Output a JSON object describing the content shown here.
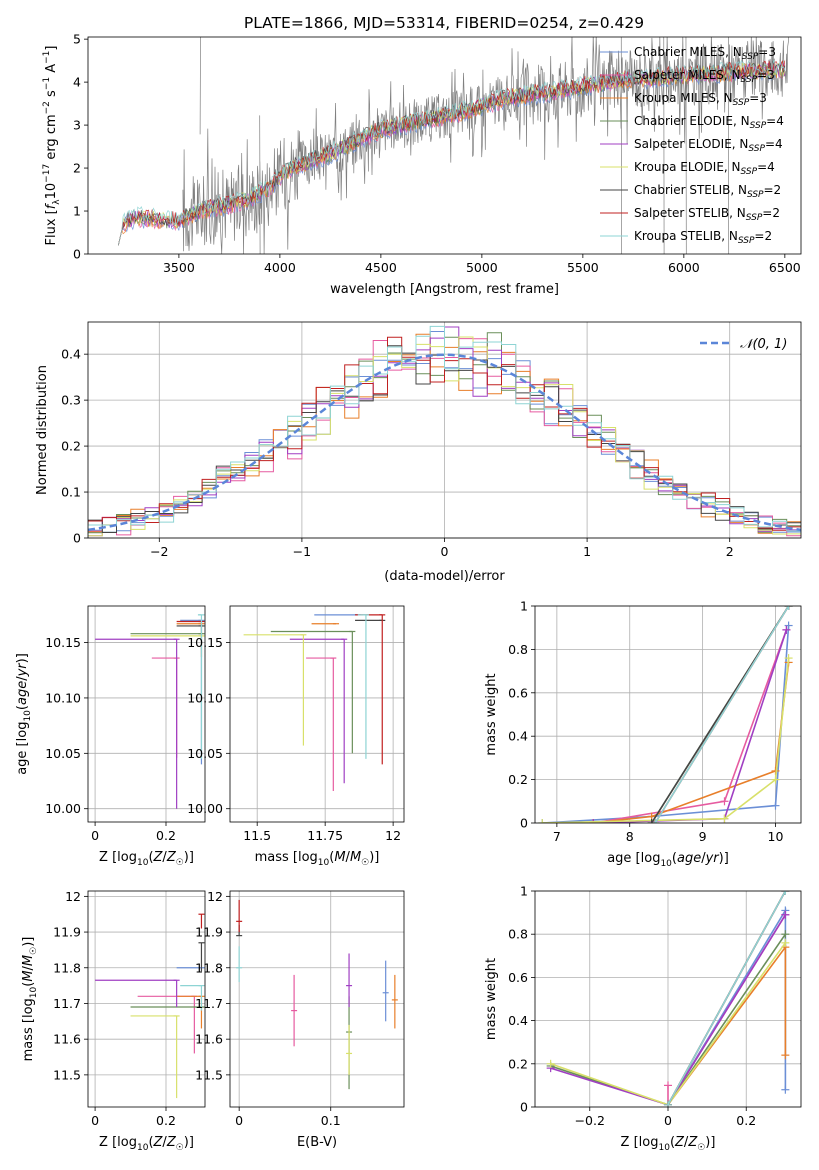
{
  "page_title": "PLATE=1866, MJD=53314, FIBERID=0254, z=0.429",
  "colors": {
    "chabrier_miles": "#6b8fd6",
    "salpeter_miles": "#e65ba0",
    "kroupa_miles": "#e87f2a",
    "chabrier_elodie": "#6a8f5a",
    "salpeter_elodie": "#a03fc3",
    "kroupa_elodie": "#d8e06a",
    "chabrier_stelib": "#454545",
    "salpeter_stelib": "#c02020",
    "kroupa_stelib": "#8ed4d4",
    "data": "#808080",
    "normal": "#5b86d8"
  },
  "legend_spectrum": [
    {
      "label": "Chabrier MILES, N",
      "sub": "SSP",
      "suffix": "=3",
      "color": "#6b8fd6"
    },
    {
      "label": "Salpeter MILES, N",
      "sub": "SSP",
      "suffix": "=3",
      "color": "#e65ba0"
    },
    {
      "label": "Kroupa MILES, N",
      "sub": "SSP",
      "suffix": "=3",
      "color": "#e87f2a"
    },
    {
      "label": "Chabrier ELODIE, N",
      "sub": "SSP",
      "suffix": "=4",
      "color": "#6a8f5a"
    },
    {
      "label": "Salpeter ELODIE, N",
      "sub": "SSP",
      "suffix": "=4",
      "color": "#a03fc3"
    },
    {
      "label": "Kroupa ELODIE, N",
      "sub": "SSP",
      "suffix": "=4",
      "color": "#d8e06a"
    },
    {
      "label": "Chabrier STELIB, N",
      "sub": "SSP",
      "suffix": "=2",
      "color": "#454545"
    },
    {
      "label": "Salpeter STELIB, N",
      "sub": "SSP",
      "suffix": "=2",
      "color": "#c02020"
    },
    {
      "label": "Kroupa STELIB, N",
      "sub": "SSP",
      "suffix": "=2",
      "color": "#8ed4d4"
    }
  ],
  "legend_hist": {
    "label": "𝒩(0, 1)"
  },
  "chart_data": [
    {
      "id": "spectrum",
      "type": "line",
      "title": "PLATE=1866, MJD=53314, FIBERID=0254, z=0.429",
      "xlabel": "wavelength [Angstrom, rest frame]",
      "ylabel": "Flux [f_λ 10^-17 erg cm^-2 s^-1 A^-1]",
      "xlim": [
        3050,
        6580
      ],
      "ylim": [
        0,
        5.05
      ],
      "xticks": [
        3500,
        4000,
        4500,
        5000,
        5500,
        6000,
        6500
      ],
      "yticks": [
        0,
        1,
        2,
        3,
        4,
        5
      ],
      "grid": false,
      "legend_position": "upper-right",
      "model_continuum": [
        [
          3200,
          0.55
        ],
        [
          3250,
          0.8
        ],
        [
          3300,
          0.85
        ],
        [
          3400,
          0.8
        ],
        [
          3500,
          0.75
        ],
        [
          3550,
          0.9
        ],
        [
          3650,
          1.05
        ],
        [
          3750,
          1.15
        ],
        [
          3850,
          1.3
        ],
        [
          3950,
          1.55
        ],
        [
          4000,
          1.8
        ],
        [
          4050,
          2.0
        ],
        [
          4150,
          2.15
        ],
        [
          4300,
          2.45
        ],
        [
          4500,
          2.9
        ],
        [
          4700,
          3.1
        ],
        [
          4900,
          3.3
        ],
        [
          5100,
          3.6
        ],
        [
          5300,
          3.75
        ],
        [
          5500,
          3.9
        ],
        [
          5700,
          4.05
        ],
        [
          6000,
          4.15
        ],
        [
          6300,
          4.25
        ],
        [
          6500,
          4.3
        ]
      ],
      "data_range": [
        3520,
        6520
      ]
    },
    {
      "id": "residuals",
      "type": "histogram",
      "xlabel": "(data-model)/error",
      "ylabel": "Normed distribution",
      "xlim": [
        -2.5,
        2.5
      ],
      "ylim": [
        0,
        0.47
      ],
      "xticks": [
        -2,
        -1,
        0,
        1,
        2
      ],
      "yticks": [
        0.0,
        0.1,
        0.2,
        0.3,
        0.4
      ],
      "grid": true,
      "legend_position": "upper-right",
      "bin_width": 0.1
    },
    {
      "id": "age_vs_Z",
      "type": "errorbar",
      "xlabel": "Z [log10(Z/Z☉)]",
      "ylabel": "age [log10(age/yr)]",
      "xlim": [
        -0.02,
        0.31
      ],
      "ylim": [
        9.988,
        10.183
      ],
      "xticks": [
        0.0,
        0.2
      ],
      "yticks": [
        10.0,
        10.05,
        10.1,
        10.15
      ],
      "grid": true,
      "points": [
        {
          "x": 0.3,
          "y": 10.17,
          "xerr": [
            0.06,
            0.0
          ],
          "yerr": [
            0.13,
            0.0
          ],
          "c": "#6b8fd6"
        },
        {
          "x": 0.23,
          "y": 10.136,
          "xerr": [
            0.07,
            0.0
          ],
          "yerr": [
            0.09,
            0.0
          ],
          "c": "#e65ba0"
        },
        {
          "x": 0.3,
          "y": 10.167,
          "xerr": [
            0.07,
            0.0
          ],
          "yerr": [
            0.03,
            0.0
          ],
          "c": "#e87f2a"
        },
        {
          "x": 0.3,
          "y": 10.158,
          "xerr": [
            0.2,
            0.0
          ],
          "yerr": [
            0.0,
            0.0
          ],
          "c": "#6a8f5a"
        },
        {
          "x": 0.23,
          "y": 10.153,
          "xerr": [
            0.23,
            0.0
          ],
          "yerr": [
            0.153,
            0.0
          ],
          "c": "#a03fc3"
        },
        {
          "x": 0.3,
          "y": 10.156,
          "xerr": [
            0.2,
            0.0
          ],
          "yerr": [
            0.0,
            0.0
          ],
          "c": "#d8e06a"
        },
        {
          "x": 0.3,
          "y": 10.165,
          "xerr": [
            0.07,
            0.0
          ],
          "yerr": [
            0.0,
            0.0
          ],
          "c": "#454545"
        },
        {
          "x": 0.3,
          "y": 10.169,
          "xerr": [
            0.07,
            0.0
          ],
          "yerr": [
            0.0,
            0.0
          ],
          "c": "#c02020"
        },
        {
          "x": 0.3,
          "y": 10.175,
          "xerr": [
            0.01,
            0.0
          ],
          "yerr": [
            0.13,
            0.0
          ],
          "c": "#8ed4d4"
        }
      ]
    },
    {
      "id": "age_vs_mass",
      "type": "errorbar",
      "xlabel": "mass [log10(M/M☉)]",
      "ylabel": "",
      "xlim": [
        11.4,
        12.04
      ],
      "ylim": [
        9.988,
        10.183
      ],
      "xticks": [
        11.5,
        11.75,
        12.0
      ],
      "yticks": [
        10.0,
        10.05,
        10.1,
        10.15
      ],
      "grid": true,
      "points": [
        {
          "x": 11.87,
          "y": 10.175,
          "xerr": [
            0.16,
            0.0
          ],
          "yerr": [
            0.0,
            0.0
          ],
          "c": "#6b8fd6"
        },
        {
          "x": 11.78,
          "y": 10.136,
          "xerr": [
            0.1,
            0.0
          ],
          "yerr": [
            0.12,
            0.0
          ],
          "c": "#e65ba0"
        },
        {
          "x": 11.79,
          "y": 10.167,
          "xerr": [
            0.09,
            0.0
          ],
          "yerr": [
            0.0,
            0.0
          ],
          "c": "#e87f2a"
        },
        {
          "x": 11.85,
          "y": 10.16,
          "xerr": [
            0.3,
            0.0
          ],
          "yerr": [
            0.11,
            0.0
          ],
          "c": "#6a8f5a"
        },
        {
          "x": 11.82,
          "y": 10.153,
          "xerr": [
            0.2,
            0.0
          ],
          "yerr": [
            0.13,
            0.0
          ],
          "c": "#a03fc3"
        },
        {
          "x": 11.67,
          "y": 10.157,
          "xerr": [
            0.22,
            0.0
          ],
          "yerr": [
            0.1,
            0.0
          ],
          "c": "#d8e06a"
        },
        {
          "x": 11.96,
          "y": 10.17,
          "xerr": [
            0.1,
            0.0
          ],
          "yerr": [
            0.0,
            0.0
          ],
          "c": "#454545"
        },
        {
          "x": 11.96,
          "y": 10.175,
          "xerr": [
            0.1,
            0.0
          ],
          "yerr": [
            0.135,
            0.0
          ],
          "c": "#c02020"
        },
        {
          "x": 11.9,
          "y": 10.175,
          "xerr": [
            0.03,
            0.0
          ],
          "yerr": [
            0.13,
            0.0
          ],
          "c": "#8ed4d4"
        }
      ]
    },
    {
      "id": "mass_weight_vs_age",
      "type": "line",
      "xlabel": "age [log10(age/yr)]",
      "ylabel": "mass weight",
      "xlim": [
        6.7,
        10.35
      ],
      "ylim": [
        0.0,
        1.0
      ],
      "xticks": [
        7,
        8,
        9,
        10
      ],
      "yticks": [
        0.0,
        0.2,
        0.4,
        0.6,
        0.8,
        1.0
      ],
      "grid": true,
      "series": [
        {
          "c": "#6b8fd6",
          "x": [
            6.8,
            8.3,
            10.0,
            10.18
          ],
          "y": [
            0.0,
            0.03,
            0.08,
            0.91
          ]
        },
        {
          "c": "#e65ba0",
          "x": [
            7.5,
            9.3,
            10.15
          ],
          "y": [
            0.0,
            0.1,
            0.89
          ]
        },
        {
          "c": "#e87f2a",
          "x": [
            7.5,
            8.3,
            10.0,
            10.18
          ],
          "y": [
            0.0,
            0.03,
            0.24,
            0.74
          ]
        },
        {
          "c": "#6a8f5a",
          "x": [
            8.3,
            10.18
          ],
          "y": [
            0.0,
            1.0
          ]
        },
        {
          "c": "#a03fc3",
          "x": [
            7.5,
            9.3,
            10.15
          ],
          "y": [
            0.0,
            0.02,
            0.89
          ]
        },
        {
          "c": "#d8e06a",
          "x": [
            6.8,
            9.3,
            10.0,
            10.18
          ],
          "y": [
            0.0,
            0.02,
            0.2,
            0.76
          ]
        },
        {
          "c": "#454545",
          "x": [
            8.3,
            10.18
          ],
          "y": [
            0.0,
            1.0
          ]
        },
        {
          "c": "#c02020",
          "x": [
            8.35,
            10.18
          ],
          "y": [
            0.0,
            1.0
          ]
        },
        {
          "c": "#8ed4d4",
          "x": [
            8.35,
            10.18
          ],
          "y": [
            0.0,
            1.0
          ]
        }
      ]
    },
    {
      "id": "mass_vs_Z",
      "type": "errorbar",
      "xlabel": "Z [log10(Z/Z☉)]",
      "ylabel": "mass [log10(M/M☉)]",
      "xlim": [
        -0.02,
        0.31
      ],
      "ylim": [
        11.41,
        12.015
      ],
      "xticks": [
        0.0,
        0.2
      ],
      "yticks": [
        11.5,
        11.6,
        11.7,
        11.8,
        11.9,
        12.0
      ],
      "grid": true,
      "points": [
        {
          "x": 0.3,
          "y": 11.8,
          "xerr": [
            0.07,
            0.0
          ],
          "yerr": [
            0.0,
            0.0
          ],
          "c": "#6b8fd6"
        },
        {
          "x": 0.28,
          "y": 11.72,
          "xerr": [
            0.16,
            0.0
          ],
          "yerr": [
            0.16,
            0.0
          ],
          "c": "#e65ba0"
        },
        {
          "x": 0.3,
          "y": 11.72,
          "xerr": [
            0.07,
            0.0
          ],
          "yerr": [
            0.09,
            0.0
          ],
          "c": "#e87f2a"
        },
        {
          "x": 0.3,
          "y": 11.69,
          "xerr": [
            0.2,
            0.0
          ],
          "yerr": [
            0.0,
            0.0
          ],
          "c": "#6a8f5a"
        },
        {
          "x": 0.23,
          "y": 11.765,
          "xerr": [
            0.23,
            0.0
          ],
          "yerr": [
            0.075,
            0.0
          ],
          "c": "#a03fc3"
        },
        {
          "x": 0.23,
          "y": 11.665,
          "xerr": [
            0.13,
            0.0
          ],
          "yerr": [
            0.23,
            0.0
          ],
          "c": "#d8e06a"
        },
        {
          "x": 0.3,
          "y": 11.87,
          "xerr": [
            0.0,
            0.0
          ],
          "yerr": [
            0.08,
            0.0
          ],
          "c": "#454545"
        },
        {
          "x": 0.3,
          "y": 11.95,
          "xerr": [
            0.0,
            0.0
          ],
          "yerr": [
            0.04,
            0.0
          ],
          "c": "#c02020"
        },
        {
          "x": 0.3,
          "y": 11.75,
          "xerr": [
            0.06,
            0.0
          ],
          "yerr": [
            0.07,
            0.0
          ],
          "c": "#8ed4d4"
        }
      ]
    },
    {
      "id": "mass_vs_ebv",
      "type": "errorbar",
      "xlabel": "E(B-V)",
      "ylabel": "",
      "xlim": [
        -0.01,
        0.18
      ],
      "ylim": [
        11.41,
        12.015
      ],
      "xticks": [
        0.0,
        0.1
      ],
      "yticks": [
        11.5,
        11.6,
        11.7,
        11.8,
        11.9,
        12.0
      ],
      "grid": true,
      "points": [
        {
          "x": 0.16,
          "y": 11.73,
          "xerr": [
            0.0,
            0.0
          ],
          "yerr": [
            0.08,
            0.09
          ],
          "c": "#6b8fd6"
        },
        {
          "x": 0.06,
          "y": 11.68,
          "xerr": [
            0.0,
            0.0
          ],
          "yerr": [
            0.1,
            0.1
          ],
          "c": "#e65ba0"
        },
        {
          "x": 0.17,
          "y": 11.71,
          "xerr": [
            0.0,
            0.0
          ],
          "yerr": [
            0.08,
            0.07
          ],
          "c": "#e87f2a"
        },
        {
          "x": 0.12,
          "y": 11.62,
          "xerr": [
            0.0,
            0.0
          ],
          "yerr": [
            0.16,
            0.1
          ],
          "c": "#6a8f5a"
        },
        {
          "x": 0.12,
          "y": 11.75,
          "xerr": [
            0.0,
            0.0
          ],
          "yerr": [
            0.06,
            0.09
          ],
          "c": "#a03fc3"
        },
        {
          "x": 0.12,
          "y": 11.56,
          "xerr": [
            0.0,
            0.0
          ],
          "yerr": [
            0.06,
            0.08
          ],
          "c": "#d8e06a"
        },
        {
          "x": 0.0,
          "y": 11.89,
          "xerr": [
            0.0,
            0.0
          ],
          "yerr": [
            0.0,
            0.03
          ],
          "c": "#454545"
        },
        {
          "x": 0.0,
          "y": 11.93,
          "xerr": [
            0.0,
            0.0
          ],
          "yerr": [
            0.03,
            0.06
          ],
          "c": "#c02020"
        },
        {
          "x": 0.0,
          "y": 11.8,
          "xerr": [
            0.0,
            0.0
          ],
          "yerr": [
            0.04,
            0.06
          ],
          "c": "#8ed4d4"
        }
      ]
    },
    {
      "id": "mass_weight_vs_Z",
      "type": "line",
      "xlabel": "Z [log10(Z/Z☉)]",
      "ylabel": "mass weight",
      "xlim": [
        -0.34,
        0.34
      ],
      "ylim": [
        0.0,
        1.0
      ],
      "xticks": [
        -0.2,
        0.0,
        0.2
      ],
      "yticks": [
        0.0,
        0.2,
        0.4,
        0.6,
        0.8,
        1.0
      ],
      "grid": true,
      "series": [
        {
          "c": "#6b8fd6",
          "x": [
            0.0,
            0.3,
            0.3
          ],
          "y": [
            0.01,
            0.91,
            0.08
          ]
        },
        {
          "c": "#e65ba0",
          "x": [
            0.0,
            0.0,
            0.3
          ],
          "y": [
            0.1,
            0.01,
            0.89
          ]
        },
        {
          "c": "#e87f2a",
          "x": [
            0.0,
            0.3,
            0.3
          ],
          "y": [
            0.01,
            0.74,
            0.24
          ]
        },
        {
          "c": "#6a8f5a",
          "x": [
            -0.3,
            0.0,
            0.3
          ],
          "y": [
            0.19,
            0.01,
            0.8
          ]
        },
        {
          "c": "#a03fc3",
          "x": [
            -0.3,
            0.0,
            0.3
          ],
          "y": [
            0.18,
            0.01,
            0.89
          ]
        },
        {
          "c": "#d8e06a",
          "x": [
            -0.3,
            0.0,
            0.3
          ],
          "y": [
            0.2,
            0.01,
            0.76
          ]
        },
        {
          "c": "#454545",
          "x": [
            0.0,
            0.3
          ],
          "y": [
            0.01,
            1.0
          ]
        },
        {
          "c": "#c02020",
          "x": [
            0.0,
            0.3
          ],
          "y": [
            0.01,
            1.0
          ]
        },
        {
          "c": "#8ed4d4",
          "x": [
            0.0,
            0.3
          ],
          "y": [
            0.01,
            1.0
          ]
        }
      ]
    }
  ]
}
